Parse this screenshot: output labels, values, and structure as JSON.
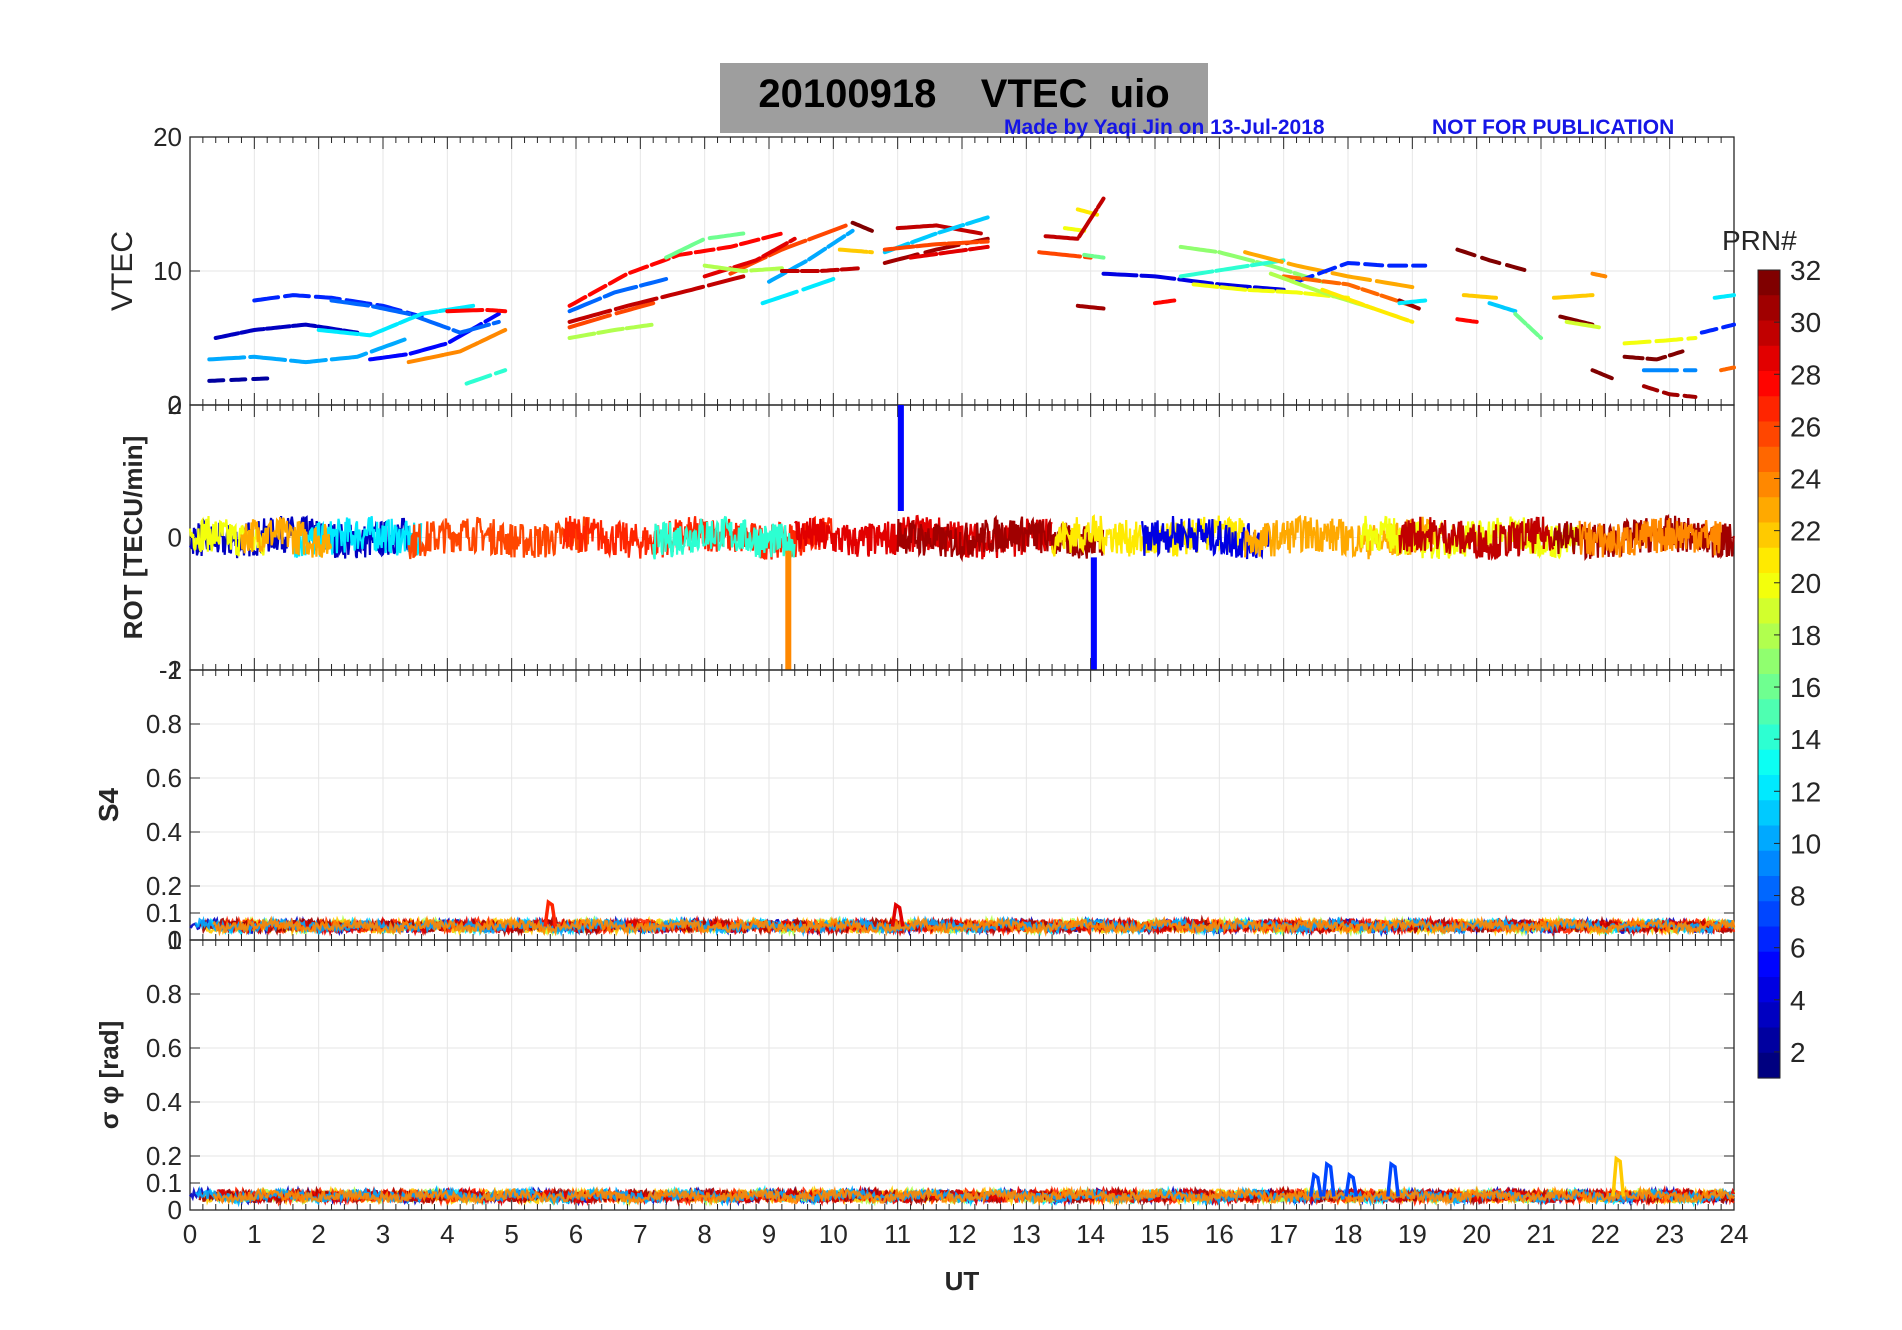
{
  "title": "20100918    VTEC  uio",
  "credit_left": "Made by Yaqi Jin on 13-Jul-2018",
  "credit_right": "NOT FOR PUBLICATION",
  "colors": {
    "credit": "#1515e6",
    "title_box": "#9e9e9e",
    "grid": "#e6e6e6"
  },
  "chart_data": [
    {
      "type": "scatter",
      "panel": "vtec",
      "ylabel": "VTEC",
      "ylim": [
        0,
        20
      ],
      "yticks": [
        0,
        10,
        20
      ],
      "xlim": [
        0,
        24
      ],
      "grid": true,
      "series": [
        {
          "prn": 2,
          "x": [
            0.3,
            0.8,
            1.3
          ],
          "y": [
            1.8,
            1.9,
            2.0
          ]
        },
        {
          "prn": 3,
          "x": [
            0.4,
            1.0,
            1.8,
            2.6
          ],
          "y": [
            5.0,
            5.6,
            6.0,
            5.4
          ]
        },
        {
          "prn": 5,
          "x": [
            2.8,
            3.4,
            4.0,
            4.8
          ],
          "y": [
            3.4,
            3.8,
            4.6,
            6.8
          ]
        },
        {
          "prn": 6,
          "x": [
            1.0,
            1.6,
            2.2,
            3.0,
            3.6
          ],
          "y": [
            7.8,
            8.2,
            8.0,
            7.4,
            6.6
          ]
        },
        {
          "prn": 8,
          "x": [
            2.2,
            2.8,
            3.4,
            4.2,
            4.8
          ],
          "y": [
            7.8,
            7.4,
            6.8,
            5.4,
            6.2
          ]
        },
        {
          "prn": 10,
          "x": [
            0.3,
            1.0,
            1.8,
            2.6,
            3.4
          ],
          "y": [
            3.4,
            3.6,
            3.2,
            3.6,
            5.0
          ]
        },
        {
          "prn": 12,
          "x": [
            2.0,
            2.8,
            3.6,
            4.4
          ],
          "y": [
            5.6,
            5.2,
            6.8,
            7.4
          ]
        },
        {
          "prn": 14,
          "x": [
            4.3,
            4.9
          ],
          "y": [
            1.6,
            2.6
          ]
        },
        {
          "prn": 24,
          "x": [
            3.4,
            4.2,
            4.9
          ],
          "y": [
            3.2,
            4.0,
            5.6
          ]
        },
        {
          "prn": 28,
          "x": [
            4.0,
            4.6,
            4.9
          ],
          "y": [
            7.0,
            7.1,
            7.0
          ]
        },
        {
          "prn": 26,
          "x": [
            5.9,
            6.6,
            7.2
          ],
          "y": [
            5.8,
            6.8,
            7.6
          ]
        },
        {
          "prn": 28,
          "x": [
            5.9,
            6.8,
            7.6,
            8.4,
            9.2
          ],
          "y": [
            7.4,
            9.8,
            11.2,
            11.8,
            12.8
          ]
        },
        {
          "prn": 30,
          "x": [
            5.9,
            6.8,
            7.8,
            8.6
          ],
          "y": [
            6.2,
            7.4,
            8.6,
            9.6
          ]
        },
        {
          "prn": 8,
          "x": [
            5.9,
            6.6,
            7.4
          ],
          "y": [
            7.0,
            8.4,
            9.4
          ]
        },
        {
          "prn": 16,
          "x": [
            7.4,
            8.0,
            8.6
          ],
          "y": [
            11.0,
            12.4,
            12.8
          ]
        },
        {
          "prn": 18,
          "x": [
            5.9,
            6.6,
            7.2
          ],
          "y": [
            5.0,
            5.6,
            6.0
          ]
        },
        {
          "prn": 26,
          "x": [
            8.4,
            9.2,
            10.2
          ],
          "y": [
            9.8,
            11.6,
            13.4
          ]
        },
        {
          "prn": 10,
          "x": [
            9.0,
            9.6,
            10.3
          ],
          "y": [
            9.2,
            10.8,
            13.0
          ]
        },
        {
          "prn": 29,
          "x": [
            8.0,
            8.8,
            9.4
          ],
          "y": [
            9.6,
            10.8,
            12.4
          ]
        },
        {
          "prn": 18,
          "x": [
            8.0,
            8.6,
            9.2
          ],
          "y": [
            10.4,
            10.0,
            10.2
          ]
        },
        {
          "prn": 12,
          "x": [
            8.9,
            9.4,
            10.0
          ],
          "y": [
            7.6,
            8.4,
            9.4
          ]
        },
        {
          "prn": 30,
          "x": [
            9.2,
            9.8,
            10.4
          ],
          "y": [
            10.0,
            10.0,
            10.2
          ]
        },
        {
          "prn": 32,
          "x": [
            10.3,
            10.6
          ],
          "y": [
            13.6,
            13.0
          ]
        },
        {
          "prn": 22,
          "x": [
            10.1,
            10.6
          ],
          "y": [
            11.6,
            11.4
          ]
        },
        {
          "prn": 30,
          "x": [
            11.0,
            11.6,
            12.3
          ],
          "y": [
            13.2,
            13.4,
            12.8
          ]
        },
        {
          "prn": 11,
          "x": [
            10.8,
            11.6,
            12.4
          ],
          "y": [
            11.4,
            12.8,
            14.0
          ]
        },
        {
          "prn": 31,
          "x": [
            10.8,
            11.6,
            12.4
          ],
          "y": [
            10.6,
            11.6,
            12.4
          ]
        },
        {
          "prn": 26,
          "x": [
            10.8,
            11.6,
            12.4
          ],
          "y": [
            11.6,
            12.0,
            12.2
          ]
        },
        {
          "prn": 29,
          "x": [
            11.2,
            11.8,
            12.4
          ],
          "y": [
            11.0,
            11.4,
            11.8
          ]
        },
        {
          "prn": 20,
          "x": [
            13.6,
            13.9
          ],
          "y": [
            13.2,
            13.0
          ]
        },
        {
          "prn": 21,
          "x": [
            13.8,
            14.1
          ],
          "y": [
            14.6,
            14.2
          ]
        },
        {
          "prn": 30,
          "x": [
            13.3,
            13.8,
            14.2
          ],
          "y": [
            12.6,
            12.4,
            15.4
          ]
        },
        {
          "prn": 26,
          "x": [
            13.2,
            13.6,
            14.0
          ],
          "y": [
            11.4,
            11.2,
            11.0
          ]
        },
        {
          "prn": 16,
          "x": [
            13.9,
            14.2
          ],
          "y": [
            11.2,
            11.0
          ]
        },
        {
          "prn": 4,
          "x": [
            14.2,
            15.0,
            16.0,
            17.0
          ],
          "y": [
            9.8,
            9.6,
            9.0,
            8.6
          ]
        },
        {
          "prn": 31,
          "x": [
            13.8,
            14.2
          ],
          "y": [
            7.4,
            7.2
          ]
        },
        {
          "prn": 28,
          "x": [
            15.0,
            15.3
          ],
          "y": [
            7.6,
            7.8
          ]
        },
        {
          "prn": 17,
          "x": [
            15.4,
            16.0,
            16.8,
            17.6
          ],
          "y": [
            11.8,
            11.4,
            10.4,
            9.2
          ]
        },
        {
          "prn": 14,
          "x": [
            15.4,
            16.2,
            17.0
          ],
          "y": [
            9.6,
            10.2,
            10.8
          ]
        },
        {
          "prn": 20,
          "x": [
            15.6,
            16.4,
            17.2,
            18.0
          ],
          "y": [
            9.0,
            8.6,
            8.4,
            8.0
          ]
        },
        {
          "prn": 23,
          "x": [
            16.4,
            17.2,
            18.0,
            19.0
          ],
          "y": [
            11.4,
            10.4,
            9.6,
            8.8
          ]
        },
        {
          "prn": 6,
          "x": [
            17.2,
            18.0,
            18.6,
            19.2
          ],
          "y": [
            9.2,
            10.6,
            10.4,
            10.4
          ]
        },
        {
          "prn": 25,
          "x": [
            17.0,
            18.0,
            19.0
          ],
          "y": [
            9.6,
            9.0,
            7.4
          ]
        },
        {
          "prn": 18,
          "x": [
            16.8,
            17.6,
            18.4
          ],
          "y": [
            9.8,
            8.4,
            7.2
          ]
        },
        {
          "prn": 21,
          "x": [
            17.6,
            18.4,
            19.0
          ],
          "y": [
            8.6,
            7.2,
            6.2
          ]
        },
        {
          "prn": 31,
          "x": [
            18.8,
            19.1
          ],
          "y": [
            7.8,
            7.2
          ]
        },
        {
          "prn": 12,
          "x": [
            18.8,
            19.2
          ],
          "y": [
            7.6,
            7.8
          ]
        },
        {
          "prn": 32,
          "x": [
            19.7,
            20.2,
            20.8
          ],
          "y": [
            11.6,
            10.8,
            10.0
          ]
        },
        {
          "prn": 22,
          "x": [
            19.8,
            20.3
          ],
          "y": [
            8.2,
            8.0
          ]
        },
        {
          "prn": 11,
          "x": [
            20.2,
            20.6
          ],
          "y": [
            7.6,
            7.0
          ]
        },
        {
          "prn": 28,
          "x": [
            19.7,
            20.0
          ],
          "y": [
            6.4,
            6.2
          ]
        },
        {
          "prn": 16,
          "x": [
            20.6,
            21.0
          ],
          "y": [
            6.8,
            5.0
          ]
        },
        {
          "prn": 22,
          "x": [
            21.2,
            21.8
          ],
          "y": [
            8.0,
            8.2
          ]
        },
        {
          "prn": 32,
          "x": [
            21.3,
            21.8
          ],
          "y": [
            6.6,
            6.0
          ]
        },
        {
          "prn": 19,
          "x": [
            21.4,
            21.9
          ],
          "y": [
            6.2,
            5.8
          ]
        },
        {
          "prn": 32,
          "x": [
            21.8,
            22.1
          ],
          "y": [
            2.6,
            2.0
          ]
        },
        {
          "prn": 24,
          "x": [
            21.8,
            22.0
          ],
          "y": [
            9.8,
            9.6
          ]
        },
        {
          "prn": 20,
          "x": [
            22.3,
            22.9,
            23.4
          ],
          "y": [
            4.6,
            4.8,
            5.0
          ]
        },
        {
          "prn": 32,
          "x": [
            22.3,
            22.8,
            23.2
          ],
          "y": [
            3.6,
            3.4,
            4.0
          ]
        },
        {
          "prn": 31,
          "x": [
            22.6,
            23.0,
            23.4
          ],
          "y": [
            1.4,
            0.8,
            0.6
          ]
        },
        {
          "prn": 9,
          "x": [
            22.6,
            23.0,
            23.4
          ],
          "y": [
            2.6,
            2.6,
            2.6
          ]
        },
        {
          "prn": 6,
          "x": [
            23.5,
            24.0
          ],
          "y": [
            5.4,
            6.0
          ]
        },
        {
          "prn": 12,
          "x": [
            23.7,
            24.0
          ],
          "y": [
            8.0,
            8.2
          ]
        },
        {
          "prn": 25,
          "x": [
            23.8,
            24.0
          ],
          "y": [
            2.6,
            2.8
          ]
        }
      ]
    },
    {
      "type": "line",
      "panel": "rot",
      "ylabel": "ROT [TECU/min]",
      "ylim": [
        -2,
        2
      ],
      "yticks": [
        -2,
        0,
        2
      ],
      "xlim": [
        0,
        24
      ],
      "grid": true,
      "bands": [
        {
          "prn": 3,
          "x": [
            0,
            3.4
          ]
        },
        {
          "prn": 20,
          "x": [
            0,
            1.2
          ]
        },
        {
          "prn": 12,
          "x": [
            1.6,
            3.6
          ]
        },
        {
          "prn": 23,
          "x": [
            0.8,
            2.2
          ]
        },
        {
          "prn": 26,
          "x": [
            3.4,
            6.2
          ]
        },
        {
          "prn": 27,
          "x": [
            5.8,
            10.0
          ]
        },
        {
          "prn": 14,
          "x": [
            7.2,
            9.4
          ]
        },
        {
          "prn": 29,
          "x": [
            9.4,
            13.4
          ]
        },
        {
          "prn": 31,
          "x": [
            11.0,
            14.2
          ]
        },
        {
          "prn": 21,
          "x": [
            13.4,
            16.4
          ]
        },
        {
          "prn": 4,
          "x": [
            14.8,
            16.8
          ]
        },
        {
          "prn": 23,
          "x": [
            16.4,
            19.4
          ]
        },
        {
          "prn": 20,
          "x": [
            18.2,
            21.6
          ]
        },
        {
          "prn": 30,
          "x": [
            18.8,
            21.2
          ]
        },
        {
          "prn": 31,
          "x": [
            21.2,
            24.0
          ]
        },
        {
          "prn": 24,
          "x": [
            21.6,
            23.8
          ]
        }
      ],
      "spikes": [
        {
          "prn": 5,
          "x": 11.05,
          "y0": 0.4,
          "y1": 2.0
        },
        {
          "prn": 24,
          "x": 9.3,
          "y0": -0.2,
          "y1": -2.0
        },
        {
          "prn": 5,
          "x": 14.05,
          "y0": -0.3,
          "y1": -2.0
        }
      ]
    },
    {
      "type": "line",
      "panel": "s4",
      "ylabel": "S4",
      "ylim": [
        0,
        1
      ],
      "yticks": [
        0,
        0.1,
        0.2,
        0.4,
        0.6,
        0.8,
        1
      ],
      "xlim": [
        0,
        24
      ],
      "grid": true,
      "baseline": 0.05,
      "bumps": [
        {
          "prn": 27,
          "x": 5.6,
          "y": 0.14
        },
        {
          "prn": 29,
          "x": 11.0,
          "y": 0.13
        }
      ]
    },
    {
      "type": "line",
      "panel": "sigma_phi",
      "ylabel": "σ φ [rad]",
      "ylim": [
        0,
        1
      ],
      "yticks": [
        0,
        0.1,
        0.2,
        0.4,
        0.6,
        0.8,
        1
      ],
      "xlim": [
        0,
        24
      ],
      "xticks": [
        0,
        1,
        2,
        3,
        4,
        5,
        6,
        7,
        8,
        9,
        10,
        11,
        12,
        13,
        14,
        15,
        16,
        17,
        18,
        19,
        20,
        21,
        22,
        23,
        24
      ],
      "xlabel": "UT",
      "grid": true,
      "baseline": 0.05,
      "bumps": [
        {
          "prn": 7,
          "x": 17.5,
          "y": 0.13
        },
        {
          "prn": 7,
          "x": 17.7,
          "y": 0.17
        },
        {
          "prn": 7,
          "x": 18.05,
          "y": 0.13
        },
        {
          "prn": 7,
          "x": 18.7,
          "y": 0.17
        },
        {
          "prn": 22,
          "x": 22.2,
          "y": 0.19
        }
      ]
    },
    {
      "type": "colorbar",
      "label": "PRN#",
      "range": [
        1,
        32
      ],
      "ticks": [
        2,
        4,
        6,
        8,
        10,
        12,
        14,
        16,
        18,
        20,
        22,
        24,
        26,
        28,
        30,
        32
      ],
      "colormap": "jet"
    }
  ]
}
